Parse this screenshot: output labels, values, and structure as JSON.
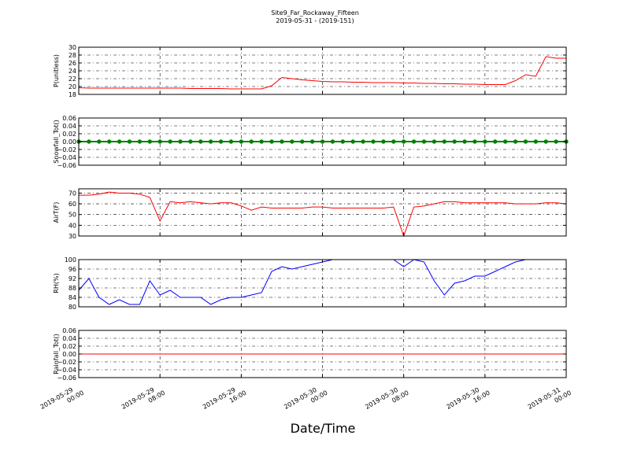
{
  "chart_data": {
    "type": "line",
    "title": "Site9_Far_Rockaway_Fifteen",
    "subtitle": "2019-05-31 - (2019-151)",
    "xlabel": "Date/Time",
    "grid": true,
    "xlim": [
      "2019-05-29 00:00",
      "2019-05-31 00:00"
    ],
    "xticks": [
      {
        "value": "2019-05-29 00:00",
        "label": "2019-05-29\n00:00"
      },
      {
        "value": "2019-05-29 08:00",
        "label": "2019-05-29\n08:00"
      },
      {
        "value": "2019-05-29 16:00",
        "label": "2019-05-29\n16:00"
      },
      {
        "value": "2019-05-30 00:00",
        "label": "2019-05-30\n00:00"
      },
      {
        "value": "2019-05-30 08:00",
        "label": "2019-05-30\n08:00"
      },
      {
        "value": "2019-05-30 16:00",
        "label": "2019-05-30\n16:00"
      },
      {
        "value": "2019-05-31 00:00",
        "label": "2019-05-31\n00:00"
      }
    ],
    "x": [
      "2019-05-29 00:00",
      "2019-05-29 01:00",
      "2019-05-29 02:00",
      "2019-05-29 03:00",
      "2019-05-29 04:00",
      "2019-05-29 05:00",
      "2019-05-29 06:00",
      "2019-05-29 07:00",
      "2019-05-29 08:00",
      "2019-05-29 09:00",
      "2019-05-29 10:00",
      "2019-05-29 11:00",
      "2019-05-29 12:00",
      "2019-05-29 13:00",
      "2019-05-29 14:00",
      "2019-05-29 15:00",
      "2019-05-29 16:00",
      "2019-05-29 17:00",
      "2019-05-29 18:00",
      "2019-05-29 19:00",
      "2019-05-29 20:00",
      "2019-05-29 21:00",
      "2019-05-29 22:00",
      "2019-05-29 23:00",
      "2019-05-30 00:00",
      "2019-05-30 01:00",
      "2019-05-30 02:00",
      "2019-05-30 03:00",
      "2019-05-30 04:00",
      "2019-05-30 05:00",
      "2019-05-30 06:00",
      "2019-05-30 07:00",
      "2019-05-30 08:00",
      "2019-05-30 09:00",
      "2019-05-30 10:00",
      "2019-05-30 11:00",
      "2019-05-30 12:00",
      "2019-05-30 13:00",
      "2019-05-30 14:00",
      "2019-05-30 15:00",
      "2019-05-30 16:00",
      "2019-05-30 17:00",
      "2019-05-30 18:00",
      "2019-05-30 19:00",
      "2019-05-30 20:00",
      "2019-05-30 21:00",
      "2019-05-30 22:00",
      "2019-05-30 23:00",
      "2019-05-31 00:00"
    ],
    "panels": [
      {
        "ylabel": "P(unitless)",
        "ylim": [
          18,
          30
        ],
        "yticks": [
          18,
          20,
          22,
          24,
          26,
          28,
          30
        ],
        "series": [
          {
            "color": "#ff0000",
            "values": [
              19.7,
              19.6,
              19.6,
              19.6,
              19.6,
              19.6,
              19.6,
              19.6,
              19.6,
              19.6,
              19.6,
              19.5,
              19.5,
              19.5,
              19.5,
              19.4,
              19.4,
              19.4,
              19.4,
              20.2,
              22.3,
              22.0,
              21.7,
              21.5,
              21.3,
              21.2,
              21.2,
              21.1,
              21.1,
              21.0,
              21.0,
              21.0,
              20.9,
              20.9,
              20.8,
              20.8,
              20.7,
              20.7,
              20.6,
              20.6,
              20.5,
              20.5,
              20.5,
              21.5,
              23.0,
              22.6,
              27.6,
              27.2,
              27.2
            ]
          }
        ]
      },
      {
        "ylabel": "Snowfall_Tot()",
        "ylim": [
          -0.06,
          0.06
        ],
        "yticks": [
          {
            "value": -0.06,
            "label": "−0.06"
          },
          {
            "value": -0.04,
            "label": "−0.04"
          },
          {
            "value": -0.02,
            "label": "−0.02"
          },
          {
            "value": 0,
            "label": "0.00"
          },
          {
            "value": 0.02,
            "label": "0.02"
          },
          {
            "value": 0.04,
            "label": "0.04"
          },
          {
            "value": 0.06,
            "label": "0.06"
          }
        ],
        "series": [
          {
            "color": "#008000",
            "markers": true,
            "values": [
              0,
              0,
              0,
              0,
              0,
              0,
              0,
              0,
              0,
              0,
              0,
              0,
              0,
              0,
              0,
              0,
              0,
              0,
              0,
              0,
              0,
              0,
              0,
              0,
              0,
              0,
              0,
              0,
              0,
              0,
              0,
              0,
              0,
              0,
              0,
              0,
              0,
              0,
              0,
              0,
              0,
              0,
              0,
              0,
              0,
              0,
              0,
              0,
              0
            ]
          }
        ]
      },
      {
        "ylabel": "AirT(F)",
        "ylim": [
          30,
          74
        ],
        "yticks": [
          30,
          40,
          50,
          60,
          70
        ],
        "series": [
          {
            "color": "#ff0000",
            "values": [
              68,
              68,
              69,
              71,
              70,
              70,
              69,
              66,
              44,
              62,
              61,
              62,
              61,
              60,
              61,
              61,
              58,
              54,
              57,
              56,
              56,
              56,
              56,
              57,
              57,
              56,
              56,
              56,
              56,
              56,
              56,
              57,
              30,
              57,
              58,
              60,
              62,
              62,
              61,
              61,
              61,
              61,
              61,
              60,
              60,
              60,
              61,
              61,
              60
            ]
          }
        ]
      },
      {
        "ylabel": "RH(%)",
        "ylim": [
          80,
          100
        ],
        "yticks": [
          80,
          84,
          88,
          92,
          96,
          100
        ],
        "series": [
          {
            "color": "#0000ff",
            "values": [
              87,
              92,
              84,
              81,
              83,
              81,
              81,
              91,
              85,
              87,
              84,
              84,
              84,
              81,
              83,
              84,
              84,
              85,
              86,
              95,
              97,
              96,
              97,
              98,
              99,
              100,
              100,
              100,
              100,
              100,
              100,
              100,
              97,
              100,
              99,
              91,
              85,
              90,
              91,
              93,
              93,
              95,
              97,
              99,
              100,
              100,
              100,
              100,
              100
            ]
          }
        ]
      },
      {
        "ylabel": "Rainfall_Tot()",
        "ylim": [
          -0.06,
          0.06
        ],
        "yticks": [
          {
            "value": -0.06,
            "label": "−0.06"
          },
          {
            "value": -0.04,
            "label": "−0.04"
          },
          {
            "value": -0.02,
            "label": "−0.02"
          },
          {
            "value": 0,
            "label": "0.00"
          },
          {
            "value": 0.02,
            "label": "0.02"
          },
          {
            "value": 0.04,
            "label": "0.04"
          },
          {
            "value": 0.06,
            "label": "0.06"
          }
        ],
        "series": [
          {
            "color": "#ff0000",
            "values": [
              0,
              0,
              0,
              0,
              0,
              0,
              0,
              0,
              0,
              0,
              0,
              0,
              0,
              0,
              0,
              0,
              0,
              0,
              0,
              0,
              0,
              0,
              0,
              0,
              0,
              0,
              0,
              0,
              0,
              0,
              0,
              0,
              0,
              0,
              0,
              0,
              0,
              0,
              0,
              0,
              0,
              0,
              0,
              0,
              0,
              0,
              0,
              0,
              0
            ]
          }
        ]
      }
    ]
  }
}
